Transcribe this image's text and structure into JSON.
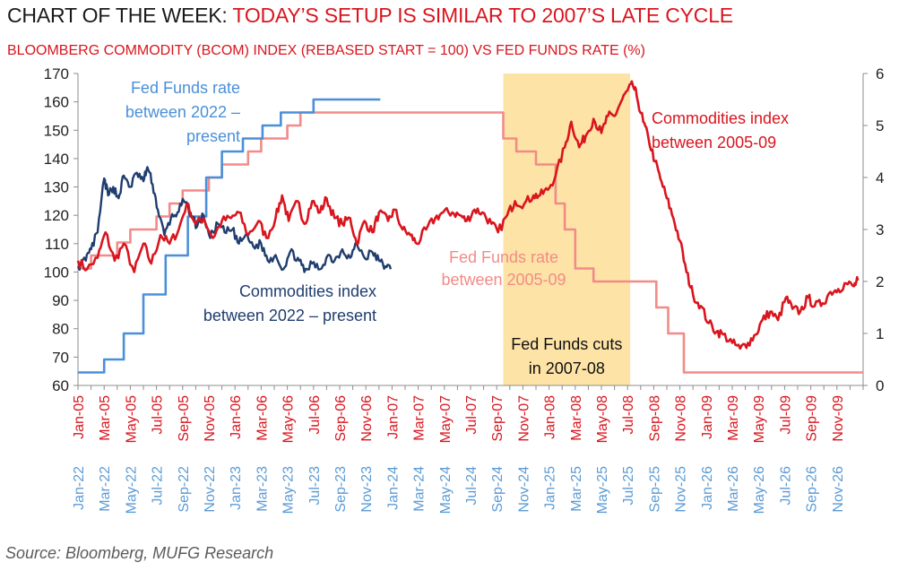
{
  "header": {
    "title_prefix": "CHART OF THE WEEK: ",
    "title_highlight": "TODAY’S SETUP IS SIMILAR TO 2007’S LATE CYCLE",
    "subtitle": "BLOOMBERG COMMODITY (BCOM) INDEX (REBASED START = 100) VS FED FUNDS RATE (%)"
  },
  "footer": {
    "source": "Source: Bloomberg, MUFG Research"
  },
  "colors": {
    "red": "#d9151e",
    "pink": "#f28b88",
    "navy": "#1f3d6e",
    "lightblue": "#4a90d9",
    "shade": "#fde4a6",
    "axis": "#8c8c8c"
  },
  "chart_data": {
    "type": "line",
    "yleft": {
      "ylim": [
        60,
        170
      ],
      "ticks": [
        60,
        70,
        80,
        90,
        100,
        110,
        120,
        130,
        140,
        150,
        160,
        170
      ]
    },
    "yright": {
      "ylim": [
        0,
        6
      ],
      "ticks": [
        0,
        1,
        2,
        3,
        4,
        5,
        6
      ]
    },
    "x_months": 60,
    "x_axis_top": {
      "labels": [
        "Jan-05",
        "Mar-05",
        "May-05",
        "Jul-05",
        "Sep-05",
        "Nov-05",
        "Jan-06",
        "Mar-06",
        "May-06",
        "Jul-06",
        "Sep-06",
        "Nov-06",
        "Jan-07",
        "Mar-07",
        "May-07",
        "Jul-07",
        "Sep-07",
        "Nov-07",
        "Jan-08",
        "Mar-08",
        "May-08",
        "Jul-08",
        "Sep-08",
        "Nov-08",
        "Jan-09",
        "Mar-09",
        "May-09",
        "Jul-09",
        "Sep-09",
        "Nov-09"
      ]
    },
    "x_axis_bottom": {
      "labels": [
        "Jan-22",
        "Mar-22",
        "May-22",
        "Jul-22",
        "Sep-22",
        "Nov-22",
        "Jan-23",
        "Mar-23",
        "May-23",
        "Jul-23",
        "Sep-23",
        "Nov-23",
        "Jan-24",
        "Mar-24",
        "May-24",
        "Jul-24",
        "Sep-24",
        "Nov-24",
        "Jan-25",
        "Mar-25",
        "May-25",
        "Jul-25",
        "Sep-25",
        "Nov-25",
        "Jan-26",
        "Mar-26",
        "May-26",
        "Jul-26",
        "Sep-26",
        "Nov-26"
      ]
    },
    "shaded_region": {
      "x_start": 32.5,
      "x_end": 42.2,
      "label_lines": [
        "Fed Funds cuts",
        "in 2007-08"
      ]
    },
    "annotations": [
      {
        "series": "ff2022",
        "lines": [
          "Fed Funds rate",
          "between 2022 –",
          "present"
        ]
      },
      {
        "series": "bcom2022",
        "lines": [
          "Commodities index",
          "between 2022 – present"
        ]
      },
      {
        "series": "ff2005",
        "lines": [
          "Fed Funds rate",
          "between 2005-09"
        ]
      },
      {
        "series": "bcom2005",
        "lines": [
          "Commodities index",
          "between 2005-09"
        ]
      }
    ],
    "series": [
      {
        "id": "bcom2005",
        "axis": "left",
        "color": "#d9151e",
        "width": 2.6,
        "noise": 1.7,
        "points": [
          [
            0,
            104
          ],
          [
            0.7,
            101
          ],
          [
            1.5,
            105
          ],
          [
            2.1,
            114
          ],
          [
            2.8,
            104
          ],
          [
            3.5,
            110
          ],
          [
            4.3,
            100
          ],
          [
            5,
            110
          ],
          [
            5.6,
            103
          ],
          [
            6.3,
            113
          ],
          [
            7,
            110
          ],
          [
            7.7,
            115
          ],
          [
            8.3,
            124
          ],
          [
            9,
            117
          ],
          [
            9.6,
            119
          ],
          [
            10.3,
            112
          ],
          [
            11,
            118
          ],
          [
            11.7,
            119
          ],
          [
            12.3,
            121
          ],
          [
            13,
            113
          ],
          [
            13.8,
            118
          ],
          [
            14.4,
            112
          ],
          [
            15.1,
            119
          ],
          [
            15.6,
            127
          ],
          [
            16.1,
            118
          ],
          [
            16.8,
            125
          ],
          [
            17.3,
            117
          ],
          [
            17.9,
            125
          ],
          [
            18.5,
            121
          ],
          [
            19,
            126
          ],
          [
            19.6,
            119
          ],
          [
            20.2,
            117
          ],
          [
            20.8,
            119
          ],
          [
            21.3,
            110
          ],
          [
            21.9,
            118
          ],
          [
            22.5,
            114
          ],
          [
            23,
            121
          ],
          [
            23.7,
            118
          ],
          [
            24.2,
            122
          ],
          [
            24.8,
            115
          ],
          [
            25.4,
            113
          ],
          [
            25.9,
            110
          ],
          [
            26.6,
            115
          ],
          [
            27.3,
            119
          ],
          [
            27.9,
            121
          ],
          [
            28.6,
            121
          ],
          [
            29.2,
            120
          ],
          [
            29.7,
            118
          ],
          [
            30.3,
            122
          ],
          [
            30.9,
            121
          ],
          [
            31.6,
            117
          ],
          [
            32.1,
            114
          ],
          [
            32.8,
            120
          ],
          [
            33.4,
            125
          ],
          [
            34.1,
            124
          ],
          [
            34.8,
            127
          ],
          [
            35.3,
            127
          ],
          [
            35.9,
            129
          ],
          [
            36.5,
            134
          ],
          [
            37.2,
            144
          ],
          [
            37.7,
            153
          ],
          [
            38.3,
            144
          ],
          [
            38.8,
            148
          ],
          [
            39.4,
            154
          ],
          [
            40,
            149
          ],
          [
            40.5,
            155
          ],
          [
            41,
            155
          ],
          [
            41.5,
            160
          ],
          [
            42,
            164
          ],
          [
            42.4,
            166
          ],
          [
            42.7,
            162
          ],
          [
            43.2,
            153
          ],
          [
            43.6,
            147
          ],
          [
            44.1,
            139
          ],
          [
            44.5,
            133
          ],
          [
            45,
            126
          ],
          [
            45.5,
            119
          ],
          [
            46,
            111
          ],
          [
            46.5,
            100
          ],
          [
            47,
            92
          ],
          [
            47.6,
            88
          ],
          [
            48.2,
            82
          ],
          [
            48.8,
            79
          ],
          [
            49.3,
            78
          ],
          [
            50,
            75
          ],
          [
            50.6,
            73
          ],
          [
            51.2,
            75
          ],
          [
            51.8,
            78
          ],
          [
            52.3,
            83
          ],
          [
            52.9,
            86
          ],
          [
            53.5,
            83
          ],
          [
            54.1,
            91
          ],
          [
            54.6,
            87
          ],
          [
            55.2,
            86
          ],
          [
            55.8,
            91
          ],
          [
            56.3,
            88
          ],
          [
            56.9,
            89
          ],
          [
            57.5,
            93
          ],
          [
            58.1,
            94
          ],
          [
            58.7,
            96
          ],
          [
            59.3,
            95
          ],
          [
            59.6,
            97
          ]
        ]
      },
      {
        "id": "bcom2022",
        "axis": "left",
        "color": "#1f3d6e",
        "width": 2.4,
        "noise": 1.6,
        "points": [
          [
            0,
            102
          ],
          [
            0.6,
            104
          ],
          [
            1,
            108
          ],
          [
            1.5,
            114
          ],
          [
            2,
            133
          ],
          [
            2.3,
            127
          ],
          [
            2.7,
            130
          ],
          [
            3.1,
            126
          ],
          [
            3.5,
            134
          ],
          [
            4,
            130
          ],
          [
            4.5,
            135
          ],
          [
            5,
            132
          ],
          [
            5.3,
            137
          ],
          [
            5.7,
            131
          ],
          [
            6.1,
            122
          ],
          [
            6.6,
            113
          ],
          [
            7.1,
            119
          ],
          [
            7.6,
            121
          ],
          [
            8.1,
            125
          ],
          [
            8.6,
            121
          ],
          [
            9.1,
            116
          ],
          [
            9.6,
            120
          ],
          [
            10.1,
            112
          ],
          [
            10.7,
            117
          ],
          [
            11.2,
            114
          ],
          [
            11.8,
            115
          ],
          [
            12.3,
            110
          ],
          [
            12.8,
            113
          ],
          [
            13.4,
            109
          ],
          [
            14,
            110
          ],
          [
            14.5,
            104
          ],
          [
            15.1,
            106
          ],
          [
            15.7,
            101
          ],
          [
            16.2,
            107
          ],
          [
            16.8,
            105
          ],
          [
            17.3,
            100
          ],
          [
            17.9,
            103
          ],
          [
            18.5,
            101
          ],
          [
            19.1,
            106
          ],
          [
            19.6,
            104
          ],
          [
            20.2,
            108
          ],
          [
            20.8,
            105
          ],
          [
            21.3,
            110
          ],
          [
            21.9,
            105
          ],
          [
            22.5,
            107
          ],
          [
            23,
            104
          ],
          [
            23.5,
            102
          ],
          [
            23.9,
            101
          ]
        ]
      },
      {
        "id": "ff2005",
        "axis": "right",
        "color": "#f28b88",
        "width": 2.6,
        "step": true,
        "points": [
          [
            0,
            2.25
          ],
          [
            1,
            2.5
          ],
          [
            3,
            2.75
          ],
          [
            4,
            3.0
          ],
          [
            6,
            3.25
          ],
          [
            7,
            3.5
          ],
          [
            8,
            3.75
          ],
          [
            10,
            4.0
          ],
          [
            11,
            4.25
          ],
          [
            13,
            4.5
          ],
          [
            14,
            4.75
          ],
          [
            16,
            5.0
          ],
          [
            17,
            5.25
          ],
          [
            32.5,
            4.75
          ],
          [
            33.5,
            4.5
          ],
          [
            35,
            4.25
          ],
          [
            36.5,
            3.5
          ],
          [
            37.2,
            3.0
          ],
          [
            38,
            2.25
          ],
          [
            39.4,
            2.0
          ],
          [
            44.2,
            1.5
          ],
          [
            45.1,
            1.0
          ],
          [
            46.3,
            0.25
          ],
          [
            60,
            0.25
          ]
        ]
      },
      {
        "id": "ff2022",
        "axis": "right",
        "color": "#4a90d9",
        "width": 2.6,
        "step": true,
        "points": [
          [
            0,
            0.25
          ],
          [
            2,
            0.5
          ],
          [
            3.5,
            1.0
          ],
          [
            5,
            1.75
          ],
          [
            6.7,
            2.5
          ],
          [
            8.4,
            3.25
          ],
          [
            9.8,
            4.0
          ],
          [
            11,
            4.5
          ],
          [
            12.6,
            4.75
          ],
          [
            14.1,
            5.0
          ],
          [
            15.5,
            5.25
          ],
          [
            18,
            5.5
          ],
          [
            23.1,
            5.5
          ]
        ]
      }
    ]
  }
}
